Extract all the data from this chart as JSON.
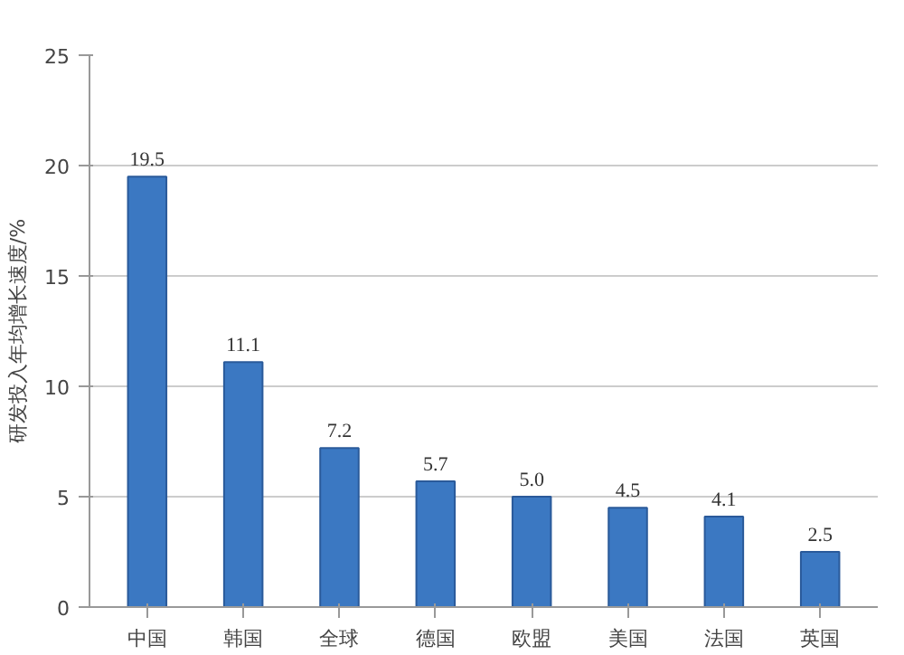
{
  "chart_data": {
    "type": "bar",
    "ylabel": "研发投入年均增长速度/%",
    "categories": [
      "中国",
      "韩国",
      "全球",
      "德国",
      "欧盟",
      "美国",
      "法国",
      "英国"
    ],
    "values": [
      19.5,
      11.1,
      7.2,
      5.7,
      5.0,
      4.5,
      4.1,
      2.5
    ],
    "color": "#3b78c2",
    "value_labels": [
      "19.5",
      "11.1",
      "7.2",
      "5.7",
      "5.0",
      "4.5",
      "4.1",
      "2.5"
    ],
    "ylim": [
      0,
      25
    ],
    "yticks": [
      0,
      5,
      10,
      15,
      20,
      25
    ],
    "grid": "y"
  }
}
